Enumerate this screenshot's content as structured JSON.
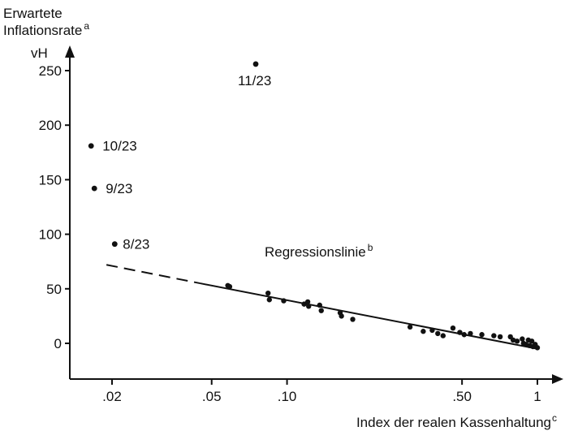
{
  "chart_data": {
    "type": "scatter",
    "x_axis": {
      "label": "Index der realen Kassenhaltung",
      "label_superscript": "c",
      "scale": "log",
      "ticks": [
        {
          "value": 0.02,
          "label": ".02"
        },
        {
          "value": 0.05,
          "label": ".05"
        },
        {
          "value": 0.1,
          "label": ".10"
        },
        {
          "value": 0.5,
          "label": ".50"
        },
        {
          "value": 1.0,
          "label": "1"
        }
      ]
    },
    "y_axis": {
      "label_lines": [
        "Erwartete",
        "Inflationsrate"
      ],
      "label_superscript": "a",
      "unit": "vH",
      "ticks": [
        0,
        50,
        100,
        150,
        200,
        250
      ]
    },
    "labeled_points": [
      {
        "x": 0.075,
        "y": 256,
        "label": "11/23"
      },
      {
        "x": 0.0165,
        "y": 181,
        "label": "10/23"
      },
      {
        "x": 0.017,
        "y": 142,
        "label": "9/23"
      },
      {
        "x": 0.0205,
        "y": 91,
        "label": "8/23"
      }
    ],
    "points": [
      {
        "x": 0.058,
        "y": 53
      },
      {
        "x": 0.059,
        "y": 52
      },
      {
        "x": 0.084,
        "y": 46
      },
      {
        "x": 0.085,
        "y": 40
      },
      {
        "x": 0.097,
        "y": 39
      },
      {
        "x": 0.117,
        "y": 36
      },
      {
        "x": 0.121,
        "y": 38
      },
      {
        "x": 0.122,
        "y": 34
      },
      {
        "x": 0.135,
        "y": 35
      },
      {
        "x": 0.137,
        "y": 30
      },
      {
        "x": 0.163,
        "y": 28
      },
      {
        "x": 0.165,
        "y": 25
      },
      {
        "x": 0.183,
        "y": 22
      },
      {
        "x": 0.31,
        "y": 15
      },
      {
        "x": 0.35,
        "y": 11
      },
      {
        "x": 0.38,
        "y": 12
      },
      {
        "x": 0.4,
        "y": 9
      },
      {
        "x": 0.42,
        "y": 7
      },
      {
        "x": 0.46,
        "y": 14
      },
      {
        "x": 0.49,
        "y": 10
      },
      {
        "x": 0.51,
        "y": 8
      },
      {
        "x": 0.54,
        "y": 9
      },
      {
        "x": 0.6,
        "y": 8
      },
      {
        "x": 0.67,
        "y": 7
      },
      {
        "x": 0.71,
        "y": 6
      },
      {
        "x": 0.78,
        "y": 6
      },
      {
        "x": 0.8,
        "y": 3
      },
      {
        "x": 0.83,
        "y": 2
      },
      {
        "x": 0.87,
        "y": 4
      },
      {
        "x": 0.88,
        "y": 0
      },
      {
        "x": 0.9,
        "y": -1
      },
      {
        "x": 0.92,
        "y": 3
      },
      {
        "x": 0.93,
        "y": -2
      },
      {
        "x": 0.95,
        "y": 2
      },
      {
        "x": 0.96,
        "y": -3
      },
      {
        "x": 0.98,
        "y": -1
      },
      {
        "x": 1.0,
        "y": -4
      }
    ],
    "regression_line": {
      "label": "Regressionslinie",
      "label_superscript": "b",
      "dashed_from": {
        "x": 0.019,
        "y": 72
      },
      "solid_from": {
        "x": 0.045,
        "y": 55
      },
      "to": {
        "x": 1.0,
        "y": -5
      }
    },
    "grid": false,
    "legend": "none"
  }
}
